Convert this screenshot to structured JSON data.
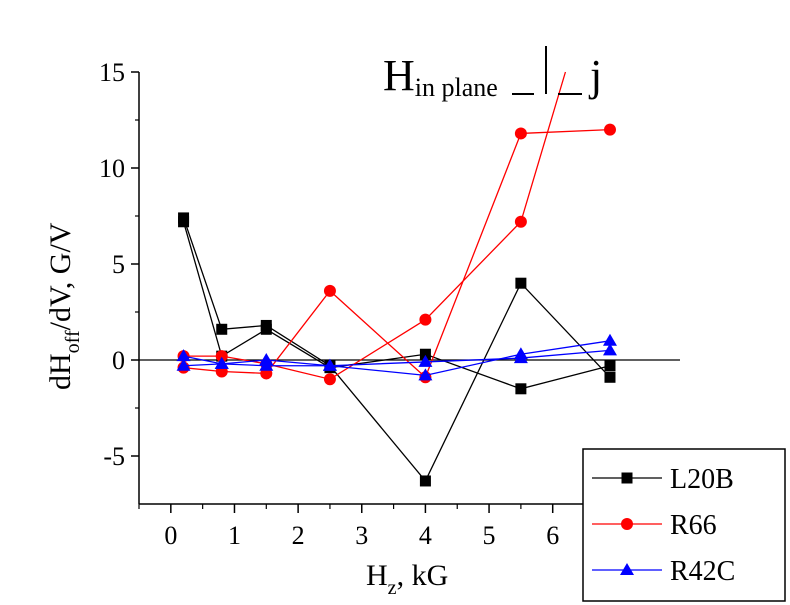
{
  "chart_data": {
    "type": "line",
    "annotation": {
      "main": "H",
      "sub": "in plane",
      "tail": "j"
    },
    "xlabel": {
      "main": "H",
      "sub": "z",
      "tail": ", kG"
    },
    "ylabel": {
      "main": "dH",
      "sub": "off",
      "tail": "/dV, G/V"
    },
    "xlim": [
      -0.5,
      8.0
    ],
    "ylim": [
      -7.5,
      15
    ],
    "x_ticks": [
      0,
      1,
      2,
      3,
      4,
      5,
      6
    ],
    "y_ticks": [
      -5,
      0,
      5,
      10,
      15
    ],
    "x_tick_labels": [
      "0",
      "1",
      "2",
      "3",
      "4",
      "5",
      "6"
    ],
    "y_tick_labels": [
      "-5",
      "0",
      "5",
      "10",
      "15"
    ],
    "zero_line": true,
    "grid": false,
    "legend_position": "bottom-right",
    "series": [
      {
        "name": "L20B",
        "color": "#000000",
        "marker": "square",
        "lines": [
          {
            "x": [
              0.2,
              0.8,
              1.5,
              2.5,
              4.0,
              5.5,
              6.9
            ],
            "y": [
              7.4,
              1.6,
              1.8,
              -0.3,
              -6.3,
              4.0,
              -0.9
            ]
          },
          {
            "x": [
              0.2,
              0.8,
              1.5,
              2.5,
              4.0,
              5.5,
              6.9
            ],
            "y": [
              7.2,
              0.2,
              1.6,
              -0.4,
              0.3,
              -1.5,
              -0.3
            ]
          }
        ]
      },
      {
        "name": "R66",
        "color": "#ff0000",
        "marker": "circle",
        "lines": [
          {
            "x": [
              0.2,
              0.8,
              1.5,
              2.5,
              4.0,
              5.5,
              6.9
            ],
            "y": [
              -0.4,
              -0.6,
              -0.7,
              3.6,
              -0.9,
              11.8,
              12.0
            ]
          },
          {
            "x": [
              0.2,
              0.8,
              1.5,
              2.5,
              4.0,
              5.5,
              6.2
            ],
            "y": [
              0.2,
              0.2,
              -0.2,
              -1.0,
              2.1,
              7.2,
              15.0
            ],
            "markers": [
              true,
              true,
              true,
              true,
              true,
              true,
              false
            ]
          }
        ]
      },
      {
        "name": "R42C",
        "color": "#0000ff",
        "marker": "triangle",
        "lines": [
          {
            "x": [
              0.2,
              0.8,
              1.5,
              2.5,
              4.0,
              5.5,
              6.9
            ],
            "y": [
              0.2,
              -0.2,
              0.0,
              -0.3,
              -0.8,
              0.3,
              1.0
            ]
          },
          {
            "x": [
              0.2,
              0.8,
              1.5,
              2.5,
              4.0,
              5.5,
              6.9
            ],
            "y": [
              -0.3,
              -0.2,
              -0.3,
              -0.3,
              -0.1,
              0.1,
              0.5
            ]
          }
        ]
      }
    ]
  }
}
